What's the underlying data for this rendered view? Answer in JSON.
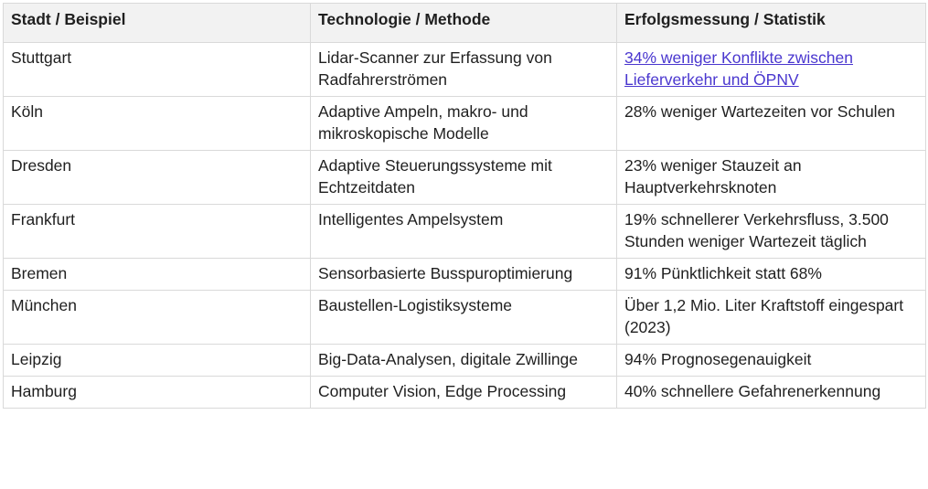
{
  "table": {
    "headers": [
      "Stadt / Beispiel",
      "Technologie / Methode",
      "Erfolgsmessung / Statistik"
    ],
    "rows": [
      {
        "city": "Stuttgart",
        "technology": "Lidar-Scanner zur Erfassung von Radfahrerströmen",
        "result": "34% weniger Konflikte zwischen Lieferverkehr und ÖPNV",
        "result_is_link": true
      },
      {
        "city": "Köln",
        "technology": "Adaptive Ampeln, makro- und mikroskopische Modelle",
        "result": "28% weniger Wartezeiten vor Schulen"
      },
      {
        "city": "Dresden",
        "technology": "Adaptive Steuerungssysteme mit Echtzeitdaten",
        "result": "23% weniger Stauzeit an Hauptverkehrsknoten"
      },
      {
        "city": "Frankfurt",
        "technology": "Intelligentes Ampelsystem",
        "result": "19% schnellerer Verkehrsfluss, 3.500 Stunden weniger Wartezeit täglich"
      },
      {
        "city": "Bremen",
        "technology": "Sensorbasierte Busspuroptimierung",
        "result": "91% Pünktlichkeit statt 68%"
      },
      {
        "city": "München",
        "technology": "Baustellen-Logistiksysteme",
        "result": "Über 1,2 Mio. Liter Kraftstoff eingespart (2023)"
      },
      {
        "city": "Leipzig",
        "technology": "Big-Data-Analysen, digitale Zwillinge",
        "result": "94% Prognosegenauigkeit"
      },
      {
        "city": "Hamburg",
        "technology": "Computer Vision, Edge Processing",
        "result": "40% schnellere Gefahrenerkennung"
      }
    ]
  },
  "colors": {
    "header_bg": "#f2f2f2",
    "border": "#d9d9d9",
    "text": "#1f1f1f",
    "link": "#4a37cf"
  }
}
